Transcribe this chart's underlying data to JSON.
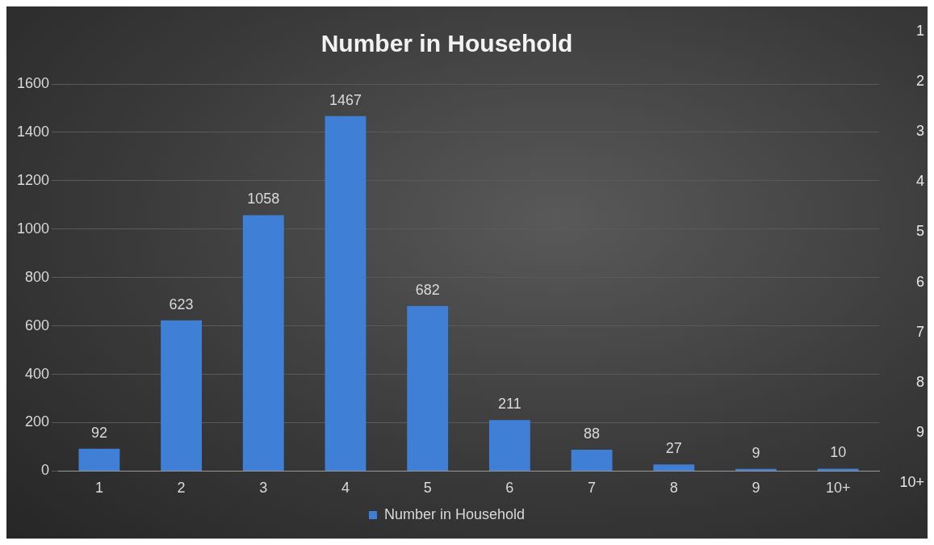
{
  "chart_data": {
    "type": "bar",
    "title": "Number in Household",
    "categories": [
      "1",
      "2",
      "3",
      "4",
      "5",
      "6",
      "7",
      "8",
      "9",
      "10+"
    ],
    "series": [
      {
        "name": "Number in Household",
        "color": "#3f7fd6",
        "values": [
          92,
          623,
          1058,
          1467,
          682,
          211,
          88,
          27,
          9,
          10
        ]
      }
    ],
    "ylim": [
      0,
      1600
    ],
    "yticks": [
      0,
      200,
      400,
      600,
      800,
      1000,
      1200,
      1400,
      1600
    ],
    "grid": "y",
    "legend": "bottom",
    "data_labels": true,
    "annotations": [
      "1",
      "2",
      "3",
      "4",
      "5",
      "6",
      "7",
      "8",
      "9",
      "10+"
    ]
  }
}
